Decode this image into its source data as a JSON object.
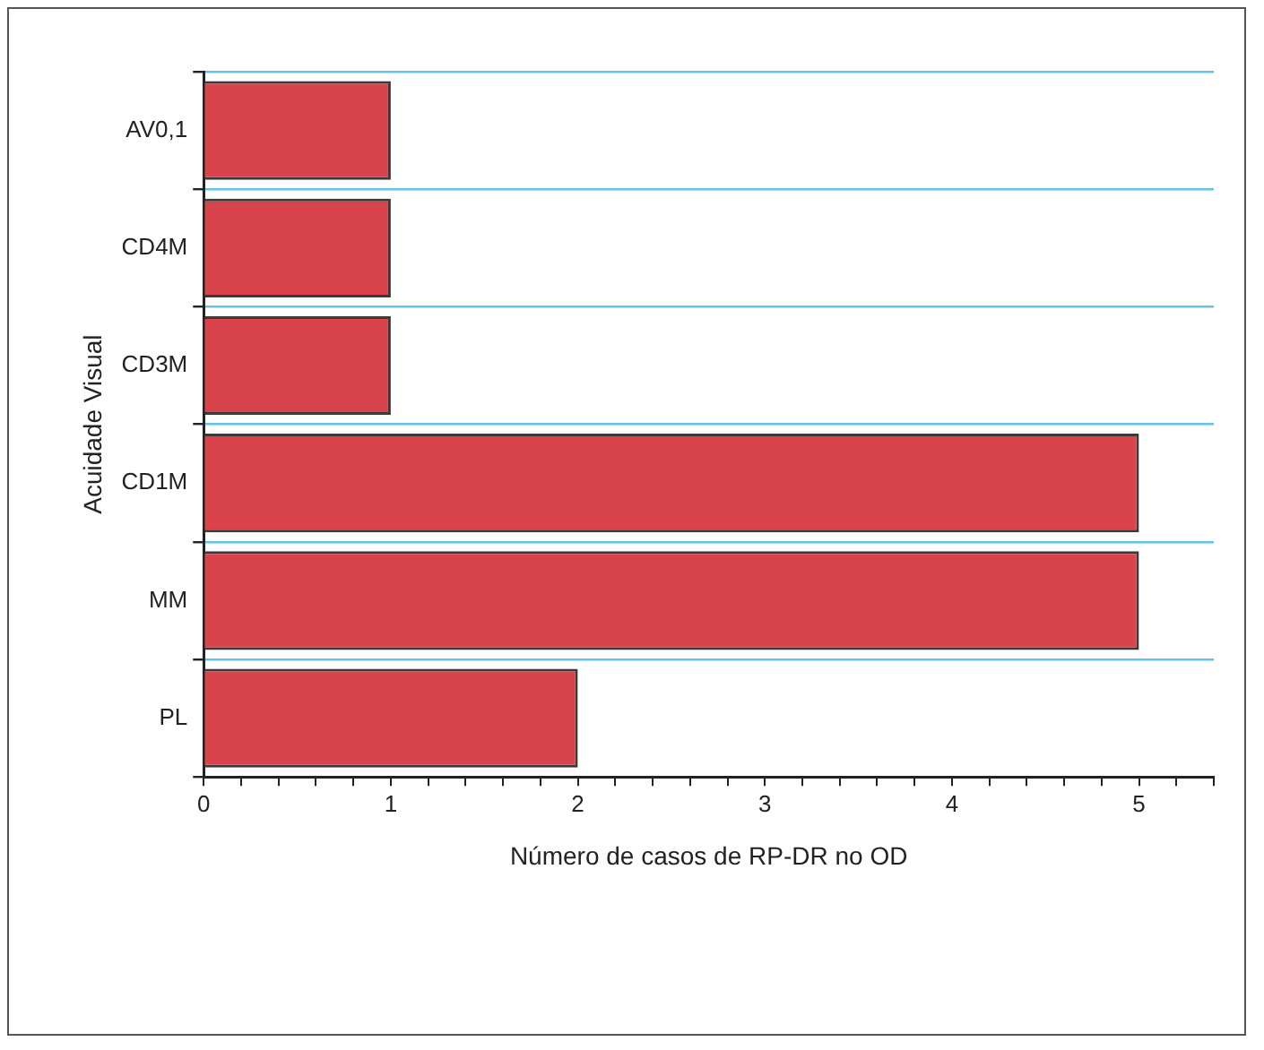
{
  "chart_data": {
    "type": "bar",
    "orientation": "horizontal",
    "xlabel": "Número de casos de RP-DR no OD",
    "ylabel": "Acuidade Visual",
    "categories": [
      "AV0,1",
      "CD4M",
      "CD3M",
      "CD1M",
      "MM",
      "PL"
    ],
    "values": [
      1,
      1,
      1,
      5,
      5,
      2
    ],
    "color": "#d9434b",
    "xlim": [
      0,
      5.4
    ],
    "xticks": [
      0,
      {
        "value": 0.2,
        "label": null
      },
      {
        "value": 0.4,
        "label": null
      },
      {
        "value": 0.6,
        "label": null
      },
      {
        "value": 0.8,
        "label": null
      },
      1,
      {
        "value": 1.2,
        "label": null
      },
      {
        "value": 1.4,
        "label": null
      },
      {
        "value": 1.6,
        "label": null
      },
      {
        "value": 1.8,
        "label": null
      },
      2,
      {
        "value": 2.2,
        "label": null
      },
      {
        "value": 2.4,
        "label": null
      },
      {
        "value": 2.6,
        "label": null
      },
      {
        "value": 2.8,
        "label": null
      },
      3,
      {
        "value": 3.2,
        "label": null
      },
      {
        "value": 3.4,
        "label": null
      },
      {
        "value": 3.6,
        "label": null
      },
      {
        "value": 3.8,
        "label": null
      },
      4,
      {
        "value": 4.2,
        "label": null
      },
      {
        "value": 4.4,
        "label": null
      },
      {
        "value": 4.6,
        "label": null
      },
      {
        "value": 4.8,
        "label": null
      },
      5,
      {
        "value": 5.2,
        "label": null
      },
      {
        "value": 5.4,
        "label": null
      }
    ],
    "grid": "y",
    "legend": false
  }
}
